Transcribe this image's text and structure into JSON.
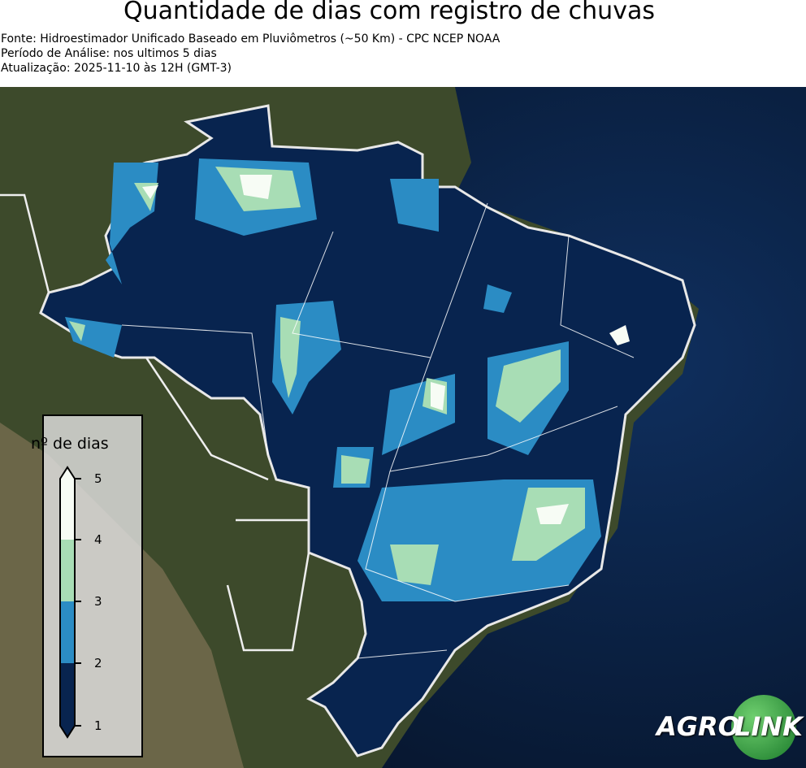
{
  "title": "Quantidade de dias com registro de chuvas",
  "subtitle_lines": [
    "Fonte: Hidroestimador Unificado Baseado em Pluviômetros (~50 Km) - CPC NCEP NOAA",
    "Período de Análise: nos ultimos 5 dias",
    "Atualização: 2025-11-10 às 12H (GMT-3)"
  ],
  "legend": {
    "title": "nº de dias",
    "ticks": [
      "1",
      "2",
      "3",
      "4",
      "5"
    ],
    "colors": [
      "#08244f",
      "#2b8cc4",
      "#a8ddb5",
      "#f7fcf5"
    ]
  },
  "logo": {
    "text_left": "AGRO",
    "text_right": "LINK"
  },
  "colors": {
    "ocean": "#0a1e3c",
    "land": "#3b4a2a",
    "borders": "#ffffff"
  }
}
